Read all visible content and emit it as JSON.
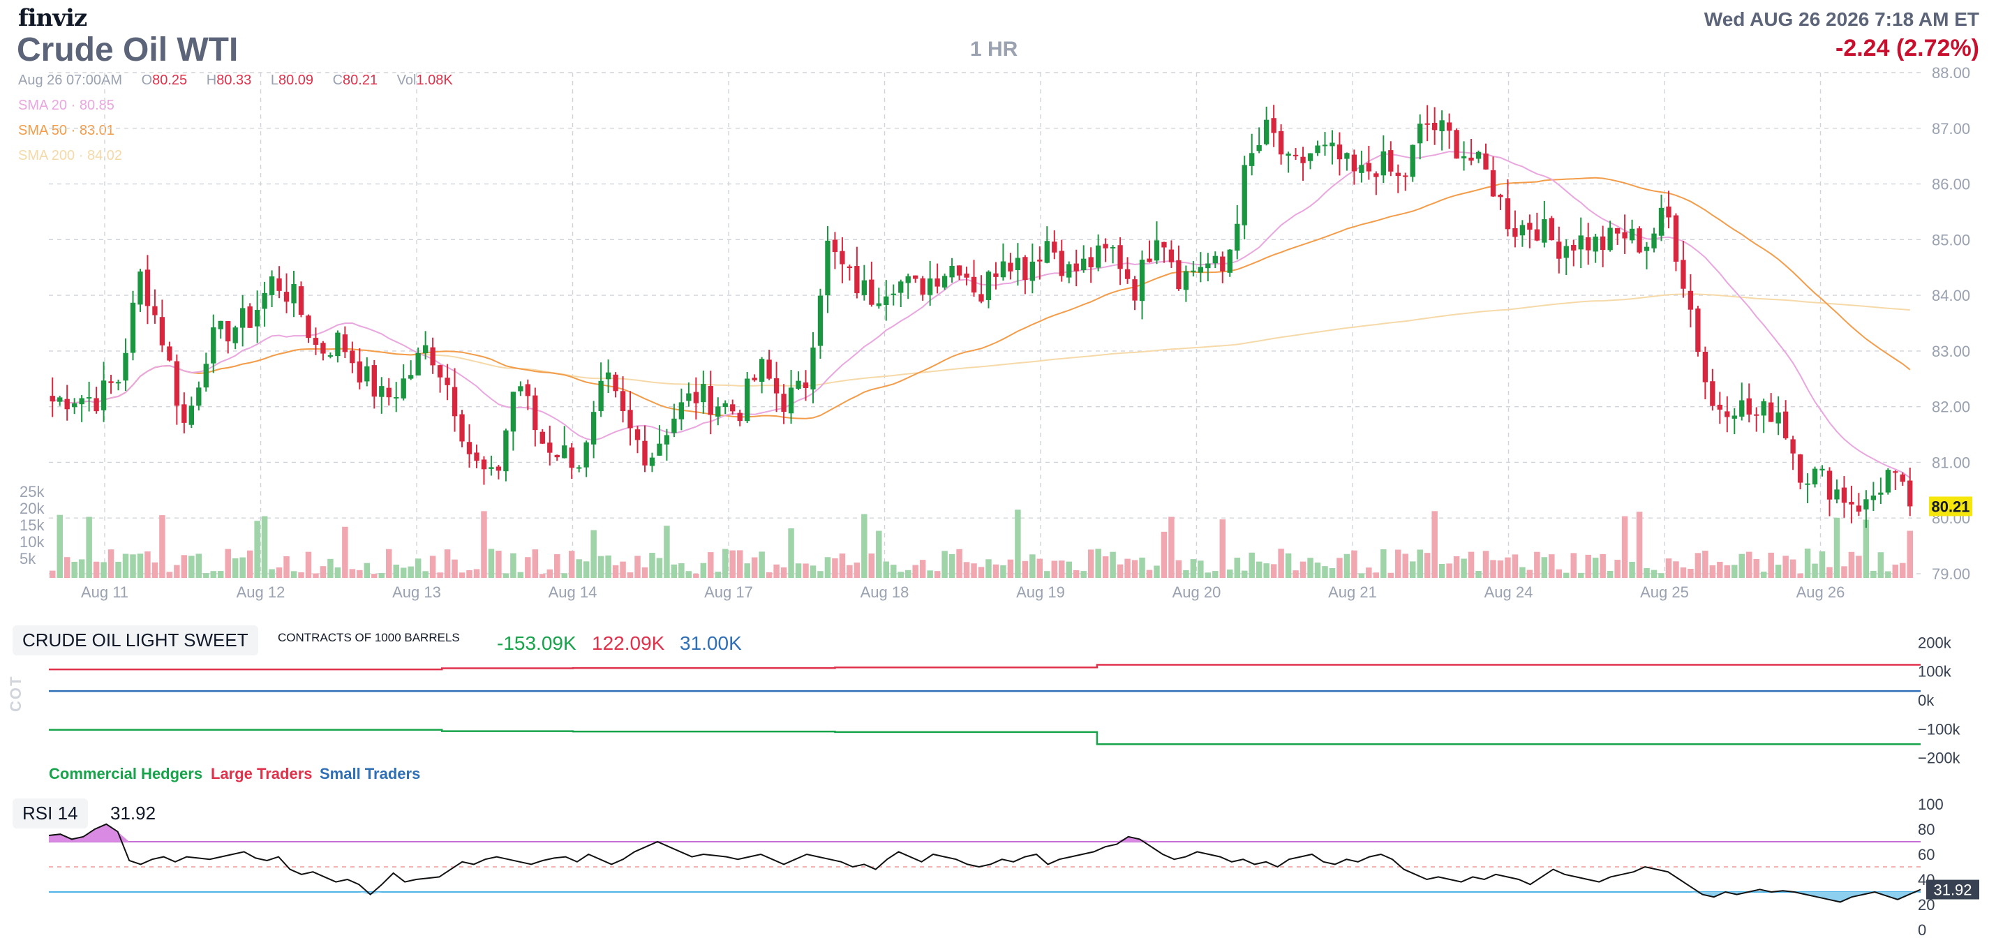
{
  "header": {
    "logo": "finviz",
    "title": "Crude Oil WTI",
    "timeframe": "1 HR",
    "datetime": "Wed AUG 26 2026 7:18 AM ET",
    "change": "-2.24 (2.72%)"
  },
  "ohlc": {
    "date": "Aug 26 07:00AM",
    "o_label": "O",
    "o": "80.25",
    "h_label": "H",
    "h": "80.33",
    "l_label": "L",
    "l": "80.09",
    "c_label": "C",
    "c": "80.21",
    "vol_label": "Vol",
    "vol": "1.08K"
  },
  "sma": [
    {
      "label": "SMA 20",
      "value": "80.85",
      "color": "#e9a6df"
    },
    {
      "label": "SMA 50",
      "value": "83.01",
      "color": "#f39c4a"
    },
    {
      "label": "SMA 200",
      "value": "84.02",
      "color": "#f6d9a8"
    }
  ],
  "colors": {
    "up": "#1a9641",
    "down": "#d7263d",
    "vol_up": "#9fd3a8",
    "vol_down": "#f1a7b0",
    "grid": "#d0d4da",
    "axis_text": "#9aa2b1",
    "commercial": "#16a34a",
    "large": "#e0314b",
    "small": "#2f6fb5",
    "rsi_line": "#111111",
    "rsi_upper": "#c56fd6",
    "rsi_lower": "#4fb3e8",
    "rsi_mid": "#f19a9a"
  },
  "chart_data": [
    {
      "type": "candlestick",
      "x_labels": [
        "Aug 11",
        "Aug 12",
        "Aug 13",
        "Aug 14",
        "Aug 17",
        "Aug 18",
        "Aug 19",
        "Aug 20",
        "Aug 21",
        "Aug 24",
        "Aug 25",
        "Aug 26"
      ],
      "ylim": [
        79.0,
        88.0
      ],
      "y_ticks": [
        "79.00",
        "80.00",
        "81.00",
        "82.00",
        "83.00",
        "84.00",
        "85.00",
        "86.00",
        "87.00",
        "88.00"
      ],
      "last_price": "80.21",
      "close_anchors": [
        82.1,
        82.2,
        82.15,
        82.5,
        84.4,
        83.2,
        81.6,
        83.1,
        83.4,
        83.6,
        84.3,
        83.9,
        83.0,
        83.2,
        82.6,
        82.1,
        82.5,
        83.1,
        82.3,
        81.0,
        80.6,
        82.6,
        81.4,
        81.2,
        81.0,
        82.5,
        81.6,
        81.1,
        81.8,
        82.2,
        82.1,
        81.9,
        82.7,
        82.1,
        82.3,
        84.9,
        84.3,
        84.0,
        84.3,
        84.1,
        84.4,
        84.6,
        84.0,
        84.8,
        84.5,
        85.0,
        84.4,
        84.6,
        84.8,
        84.1,
        85.3,
        84.3,
        84.6,
        84.4,
        86.3,
        87.0,
        86.2,
        86.6,
        86.5,
        86.1,
        86.4,
        86.0,
        87.1,
        86.9,
        86.5,
        86.1,
        85.2,
        85.3,
        84.9,
        85.0,
        84.9,
        85.1,
        84.9,
        85.5,
        83.9,
        82.0,
        82.1,
        81.8,
        82.0,
        80.9,
        80.7,
        80.4,
        80.2,
        80.8,
        80.21
      ],
      "volume_ticks": [
        "5k",
        "10k",
        "15k",
        "20k",
        "25k"
      ]
    },
    {
      "type": "line",
      "title": "CRUDE OIL LIGHT SWEET",
      "subtitle": "CONTRACTS OF 1000 BARRELS",
      "side_label": "COT",
      "values": [
        "-153.09K",
        "122.09K",
        "31.00K"
      ],
      "series": [
        {
          "name": "Commercial Hedgers",
          "x_change": [
            0,
            0.21,
            0.28,
            0.42,
            0.56
          ],
          "values_k": [
            -103,
            -108,
            -109,
            -111,
            -153
          ]
        },
        {
          "name": "Large Traders",
          "x_change": [
            0,
            0.21,
            0.28,
            0.42,
            0.56
          ],
          "values_k": [
            106,
            110,
            111,
            113,
            122
          ]
        },
        {
          "name": "Small Traders",
          "x_change": [
            0
          ],
          "values_k": [
            31
          ]
        }
      ],
      "ylim": [
        -220,
        220
      ],
      "y_ticks": [
        "200k",
        "100k",
        "0k",
        "−100k",
        "−200k"
      ]
    },
    {
      "type": "line",
      "title": "RSI 14",
      "value": "31.92",
      "ylim": [
        0,
        100
      ],
      "y_ticks": [
        "100",
        "80",
        "60",
        "40",
        "20",
        "0"
      ],
      "upper": 70,
      "mid": 50,
      "lower": 30,
      "values": [
        75,
        76,
        72,
        74,
        80,
        84,
        78,
        55,
        52,
        56,
        58,
        54,
        58,
        57,
        56,
        58,
        60,
        62,
        57,
        55,
        58,
        48,
        44,
        46,
        42,
        38,
        40,
        36,
        28,
        36,
        45,
        38,
        40,
        41,
        42,
        48,
        54,
        52,
        56,
        58,
        56,
        54,
        52,
        55,
        57,
        58,
        54,
        60,
        56,
        52,
        56,
        62,
        66,
        70,
        66,
        62,
        58,
        60,
        59,
        58,
        56,
        58,
        60,
        56,
        52,
        56,
        60,
        58,
        56,
        54,
        50,
        52,
        48,
        56,
        62,
        58,
        54,
        60,
        58,
        56,
        52,
        50,
        52,
        56,
        54,
        58,
        60,
        52,
        56,
        58,
        60,
        62,
        66,
        68,
        74,
        72,
        66,
        60,
        56,
        58,
        62,
        60,
        58,
        54,
        56,
        52,
        54,
        50,
        56,
        58,
        60,
        54,
        52,
        56,
        54,
        58,
        60,
        56,
        48,
        44,
        40,
        42,
        40,
        38,
        42,
        40,
        44,
        42,
        40,
        36,
        42,
        48,
        44,
        42,
        40,
        38,
        42,
        44,
        46,
        50,
        48,
        46,
        40,
        34,
        28,
        26,
        30,
        28,
        30,
        32,
        30,
        31,
        30,
        28,
        26,
        24,
        22,
        26,
        28,
        30,
        27,
        24,
        28,
        31.92
      ]
    }
  ]
}
